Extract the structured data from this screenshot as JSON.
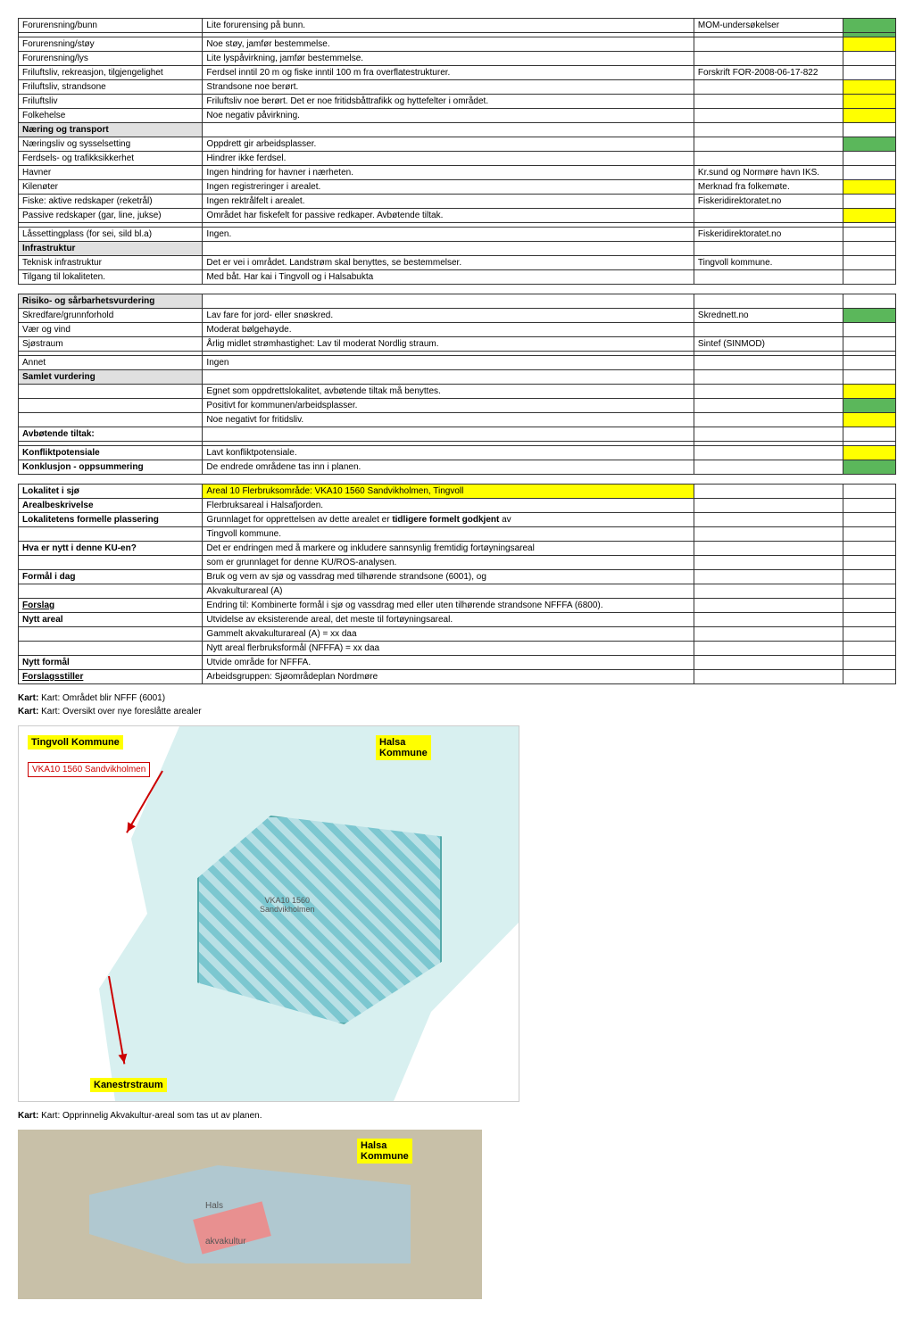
{
  "t1": [
    {
      "a": "Forurensning/bunn",
      "b": "Lite forurensing på bunn.",
      "c": "MOM-undersøkelser",
      "d": "g"
    },
    {
      "a": "",
      "b": "",
      "c": "",
      "d": "g"
    },
    {
      "a": "Forurensning/støy",
      "b": "Noe støy, jamfør bestemmelse.",
      "c": "",
      "d": "y"
    },
    {
      "a": "Forurensning/lys",
      "b": "Lite lyspåvirkning, jamfør bestemmelse.",
      "c": "",
      "d": ""
    },
    {
      "a": "Friluftsliv, rekreasjon, tilgjengelighet",
      "b": "Ferdsel inntil 20 m og fiske inntil 100 m fra overflatestrukturer.",
      "c": "Forskrift FOR-2008-06-17-822",
      "d": ""
    },
    {
      "a": "Friluftsliv, strandsone",
      "b": "Strandsone noe berørt.",
      "c": "",
      "d": "y"
    },
    {
      "a": "Friluftsliv",
      "b": "Friluftsliv noe berørt. Det er noe fritidsbåttrafikk og hyttefelter i området.",
      "c": "",
      "d": "y"
    },
    {
      "a": "Folkehelse",
      "b": "Noe negativ påvirkning.",
      "c": "",
      "d": "y"
    },
    {
      "a": "Næring og transport",
      "b": "",
      "c": "",
      "d": "",
      "h": 1
    },
    {
      "a": "Næringsliv og sysselsetting",
      "b": "Oppdrett gir arbeidsplasser.",
      "c": "",
      "d": "g"
    },
    {
      "a": "Ferdsels- og trafikksikkerhet",
      "b": "Hindrer ikke ferdsel.",
      "c": "",
      "d": ""
    },
    {
      "a": "Havner",
      "b": "Ingen hindring for havner i nærheten.",
      "c": "Kr.sund og Normøre havn IKS.",
      "d": ""
    },
    {
      "a": "Kilenøter",
      "b": "Ingen registreringer i arealet.",
      "c": "Merknad fra folkemøte.",
      "d": "y"
    },
    {
      "a": "Fiske: aktive redskaper (reketrål)",
      "b": "Ingen rektrålfelt i arealet.",
      "c": "Fiskeridirektoratet.no",
      "d": ""
    },
    {
      "a": "Passive redskaper (gar, line, jukse)",
      "b": "Området har fiskefelt for passive redkaper. Avbøtende tiltak.",
      "c": "",
      "d": "y"
    },
    {
      "a": "",
      "b": "",
      "c": "",
      "d": ""
    },
    {
      "a": "Låssettingplass (for sei, sild bl.a)",
      "b": "Ingen.",
      "c": "Fiskeridirektoratet.no",
      "d": ""
    },
    {
      "a": "Infrastruktur",
      "b": "",
      "c": "",
      "d": "",
      "h": 1
    },
    {
      "a": "Teknisk infrastruktur",
      "b": "Det er vei i området. Landstrøm skal benyttes, se bestemmelser.",
      "c": "Tingvoll kommune.",
      "d": ""
    },
    {
      "a": "Tilgang til lokaliteten.",
      "b": "Med båt. Har kai i Tingvoll og i Halsabukta",
      "c": "",
      "d": ""
    }
  ],
  "t2": [
    {
      "a": "Risiko- og sårbarhetsvurdering",
      "b": "",
      "c": "",
      "d": "",
      "h": 1
    },
    {
      "a": "Skredfare/grunnforhold",
      "b": "Lav fare for jord- eller snøskred.",
      "c": "Skrednett.no",
      "d": "g"
    },
    {
      "a": "Vær og vind",
      "b": "Moderat bølgehøyde.",
      "c": "",
      "d": ""
    },
    {
      "a": "Sjøstraum",
      "b": "Årlig midlet strømhastighet: Lav til moderat Nordlig straum.",
      "c": "Sintef (SINMOD)",
      "d": ""
    },
    {
      "a": "",
      "b": "",
      "c": "",
      "d": ""
    },
    {
      "a": "Annet",
      "b": "Ingen",
      "c": "",
      "d": ""
    },
    {
      "a": "Samlet vurdering",
      "b": "",
      "c": "",
      "d": "",
      "h": 1
    },
    {
      "a": "",
      "b": "Egnet som oppdrettslokalitet, avbøtende tiltak må benyttes.",
      "c": "",
      "d": "y"
    },
    {
      "a": "",
      "b": "Positivt for kommunen/arbeidsplasser.",
      "c": "",
      "d": "g"
    },
    {
      "a": "",
      "b": "Noe negativt for fritidsliv.",
      "c": "",
      "d": "y"
    },
    {
      "a": "Avbøtende tiltak:",
      "b": "",
      "c": "",
      "d": "",
      "bold": 1
    },
    {
      "a": "",
      "b": "",
      "c": "",
      "d": ""
    },
    {
      "a": "Konfliktpotensiale",
      "b": "Lavt konfliktpotensiale.",
      "c": "",
      "d": "y",
      "bold": 1
    },
    {
      "a": "Konklusjon - oppsummering",
      "b": "De endrede områdene tas inn i planen.",
      "c": "",
      "d": "g",
      "bold": 1
    }
  ],
  "t3": [
    {
      "a": "Lokalitet i sjø",
      "b": "Areal 10 Flerbruksområde: VKA10 1560 Sandvikholmen, Tingvoll",
      "bold": 1,
      "by": 1
    },
    {
      "a": "Arealbeskrivelse",
      "b": "Flerbruksareal i Halsafjorden.",
      "bold": 1
    },
    {
      "a": "Lokalitetens formelle plassering",
      "b": "Grunnlaget for opprettelsen av dette arealet er <b>tidligere formelt godkjent</b> av",
      "bold": 1
    },
    {
      "a": "",
      "b": "Tingvoll kommune."
    },
    {
      "a": "Hva er nytt i denne KU-en?",
      "b": "Det er endringen med å markere og inkludere sannsynlig fremtidig fortøyningsareal",
      "bold": 1
    },
    {
      "a": "",
      "b": "som er grunnlaget for denne KU/ROS-analysen."
    },
    {
      "a": "Formål i dag",
      "b": "Bruk og vern av sjø og vassdrag med tilhørende strandsone (6001), og",
      "bold": 1
    },
    {
      "a": "",
      "b": "Akvakulturareal (A)"
    },
    {
      "a": "Forslag",
      "b": "Endring til: Kombinerte formål i sjø og vassdrag med eller uten tilhørende strandsone NFFFA (6800).",
      "bold": 1,
      "u": 1
    },
    {
      "a": "Nytt areal",
      "b": "Utvidelse av eksisterende areal, det meste til fortøyningsareal.",
      "bold": 1
    },
    {
      "a": "",
      "b": "Gammelt akvakulturareal (A) = xx daa"
    },
    {
      "a": "",
      "b": "Nytt areal flerbruksformål (NFFFA) = xx daa"
    },
    {
      "a": "Nytt formål",
      "b": "Utvide område for NFFFA.",
      "bold": 1
    },
    {
      "a": "Forslagsstiller",
      "b": "Arbeidsgruppen: Sjøområdeplan Nordmøre",
      "bold": 1,
      "u": 1
    }
  ],
  "notes": {
    "n1": "Kart: Området blir NFFF (6001)",
    "n2": "Kart: Oversikt over nye foreslåtte arealer",
    "n3": "Kart: Opprinnelig Akvakultur-areal som tas ut av planen."
  },
  "map": {
    "tingvoll": "Tingvoll Kommune",
    "halsa": "Halsa\nKommune",
    "vka": "VKA10 1560 Sandvikholmen",
    "vka2": "VKA10 1560\nSandvikholmen",
    "kane": "Kanestrstraum",
    "hals": "Hals",
    "akva": "akvakultur"
  }
}
